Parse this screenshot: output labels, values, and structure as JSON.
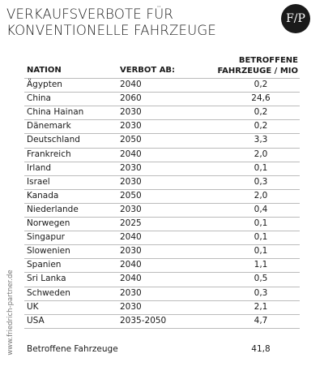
{
  "title": [
    "VERKAUFSVERBOTE FÜR",
    "KONVENTIONELLE FAHRZEUGE"
  ],
  "logo": "F/P",
  "side_text": "www.friedrich-partner.de",
  "table": {
    "header": [
      "NATION",
      "VERBOT AB:",
      "BETROFFENE\nFAHRZEUGE / MIO"
    ],
    "rows": [
      [
        "Ägypten",
        "2040",
        "0,2"
      ],
      [
        "China",
        "2060",
        "24,6"
      ],
      [
        "China Hainan",
        "2030",
        "0,2"
      ],
      [
        "Dänemark",
        "2030",
        "0,2"
      ],
      [
        "Deutschland",
        "2050",
        "3,3"
      ],
      [
        "Frankreich",
        "2040",
        "2,0"
      ],
      [
        "Irland",
        "2030",
        "0,1"
      ],
      [
        "Israel",
        "2030",
        "0,3"
      ],
      [
        "Kanada",
        "2050",
        "2,0"
      ],
      [
        "Niederlande",
        "2030",
        "0,4"
      ],
      [
        "Norwegen",
        "2025",
        "0,1"
      ],
      [
        "Singapur",
        "2040",
        "0,1"
      ],
      [
        "Slowenien",
        "2030",
        "0,1"
      ],
      [
        "Spanien",
        "2040",
        "1,1"
      ],
      [
        "Sri Lanka",
        "2040",
        "0,5"
      ],
      [
        "Schweden",
        "2030",
        "0,3"
      ],
      [
        "UK",
        "2030",
        "2,1"
      ],
      [
        "USA",
        "2035-2050",
        "4,7"
      ]
    ]
  },
  "footer": {
    "label": "Betroffene Fahrzeuge",
    "value": "41,8"
  }
}
